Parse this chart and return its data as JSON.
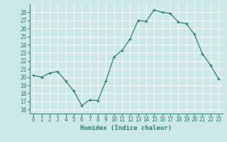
{
  "x": [
    0,
    1,
    2,
    3,
    4,
    5,
    6,
    7,
    8,
    9,
    10,
    11,
    12,
    13,
    14,
    15,
    16,
    17,
    18,
    19,
    20,
    21,
    22,
    23
  ],
  "y": [
    20.2,
    20.0,
    20.5,
    20.7,
    19.5,
    18.3,
    16.5,
    17.2,
    17.1,
    19.5,
    22.5,
    23.3,
    24.7,
    27.0,
    26.9,
    28.3,
    28.0,
    27.9,
    26.8,
    26.6,
    25.3,
    22.9,
    21.5,
    19.8
  ],
  "xlabel": "Humidex (Indice chaleur)",
  "ylim": [
    15.5,
    29
  ],
  "xlim": [
    -0.5,
    23.5
  ],
  "yticks": [
    16,
    17,
    18,
    19,
    20,
    21,
    22,
    23,
    24,
    25,
    26,
    27,
    28
  ],
  "xticks": [
    0,
    1,
    2,
    3,
    4,
    5,
    6,
    7,
    8,
    9,
    10,
    11,
    12,
    13,
    14,
    15,
    16,
    17,
    18,
    19,
    20,
    21,
    22,
    23
  ],
  "line_color": "#2e7d72",
  "bg_color": "#cce8e8",
  "grid_color": "#ffffff",
  "label_color": "#2e7d72",
  "tick_color": "#2e7d72",
  "tick_fontsize": 5.5,
  "xlabel_fontsize": 6.5
}
